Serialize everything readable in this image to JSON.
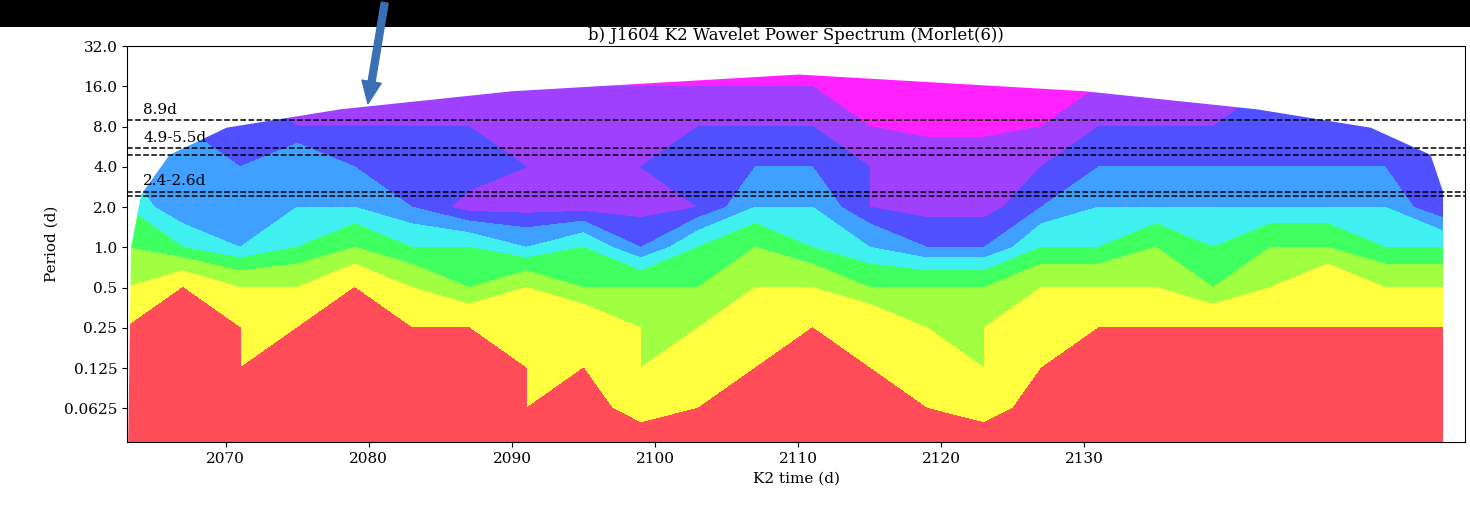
{
  "chart_data": {
    "type": "wavelet_power",
    "title": "b) J1604 K2 Wavelet Power Spectrum (Morlet(6))",
    "x_label": "K2 time (d)",
    "y_label": "Period (d)",
    "log": "y",
    "xlim": [
      2063.1,
      2156.6
    ],
    "xticks": [
      2070,
      2080,
      2090,
      2100,
      2110,
      2120,
      2130
    ],
    "ylim": [
      0.035,
      32
    ],
    "yticks": [
      0.0625,
      0.125,
      0.25,
      0.5,
      {
        "value": 1,
        "label": "1.0"
      },
      {
        "value": 2,
        "label": "2.0"
      },
      {
        "value": 4,
        "label": "4.0"
      },
      {
        "value": 8,
        "label": "8.0"
      },
      {
        "value": 16,
        "label": "16.0"
      },
      {
        "value": 32,
        "label": "32.0"
      }
    ],
    "x": [
      2063,
      2067,
      2071,
      2075,
      2079,
      2083,
      2087,
      2091,
      2095,
      2099,
      2103,
      2107,
      2111,
      2115,
      2119,
      2123,
      2127,
      2131,
      2135,
      2139,
      2143,
      2147,
      2151,
      2155
    ],
    "periods": [
      0.035,
      0.0625,
      0.125,
      0.25,
      0.5,
      1,
      2,
      4,
      8,
      16,
      32
    ],
    "power": [
      [
        9,
        9,
        9,
        9,
        9,
        9,
        9,
        9,
        9,
        9,
        9,
        9,
        9,
        9,
        9,
        9,
        9,
        9,
        9,
        9,
        9,
        9,
        9,
        9
      ],
      [
        9,
        9,
        9,
        9,
        9,
        9,
        9,
        8,
        9,
        7,
        8,
        9,
        9,
        9,
        8,
        7,
        9,
        9,
        9,
        9,
        9,
        9,
        9,
        9
      ],
      [
        9,
        9,
        8,
        9,
        9,
        9,
        9,
        8,
        8,
        7,
        8,
        8,
        9,
        8,
        8,
        7,
        8,
        9,
        9,
        9,
        9,
        9,
        9,
        9
      ],
      [
        8,
        9,
        8,
        8,
        9,
        8,
        8,
        8,
        8,
        7,
        7,
        8,
        8,
        8,
        7,
        7,
        8,
        8,
        8,
        8,
        8,
        8,
        8,
        8
      ],
      [
        7,
        8,
        7,
        7,
        8,
        7,
        6,
        7,
        6,
        6,
        6,
        7,
        7,
        6,
        6,
        6,
        7,
        7,
        7,
        6,
        7,
        8,
        7,
        7
      ],
      [
        6,
        5,
        4,
        5,
        6,
        5,
        5,
        4,
        5,
        3,
        5,
        6,
        5,
        4,
        3,
        3,
        5,
        5,
        6,
        5,
        6,
        6,
        5,
        5
      ],
      [
        5,
        3,
        4,
        4,
        4,
        3,
        1.5,
        1.5,
        1.5,
        1.5,
        2,
        4,
        4,
        2,
        1.5,
        1.5,
        3,
        4,
        4,
        4,
        4,
        4,
        4,
        2
      ],
      [
        4,
        4,
        3,
        4,
        3,
        3,
        3,
        2,
        2,
        2,
        3,
        3,
        3,
        2,
        2,
        2,
        2,
        3,
        3,
        3,
        3,
        3,
        3,
        3
      ],
      [
        3,
        3,
        3,
        2,
        2,
        2,
        2,
        2,
        2,
        2,
        2,
        2,
        2,
        1,
        0.5,
        0.5,
        1,
        2,
        2,
        2,
        3,
        3,
        3,
        3
      ],
      [
        2,
        2,
        2,
        1,
        1,
        1,
        1,
        1,
        1,
        1,
        1,
        1,
        1,
        1,
        0.5,
        0.5,
        1,
        1,
        1,
        1,
        2,
        2,
        2,
        2
      ],
      [
        1,
        1,
        1,
        1,
        0.5,
        0.5,
        0.5,
        0.5,
        0.5,
        0.5,
        0.5,
        0.5,
        0.5,
        0.5,
        0.5,
        0.5,
        0.5,
        0.5,
        0.5,
        1,
        1,
        1,
        1,
        1
      ]
    ],
    "power_levels": [
      0,
      1,
      2,
      3,
      4,
      5,
      6,
      7,
      8,
      10
    ],
    "colors": [
      "#ff22ff",
      "#a040ff",
      "#5050ff",
      "#40a0ff",
      "#40f0f0",
      "#40ff60",
      "#a0ff40",
      "#ffff40",
      "#ff4d5a"
    ],
    "cone": {
      "x": [
        2063.1,
        2063.3,
        2064,
        2066,
        2070,
        2078,
        2090,
        2110,
        2130,
        2142,
        2150,
        2154.2,
        2156.4,
        2156.6
      ],
      "period": [
        0.035,
        1,
        2.5,
        5,
        8,
        11,
        15,
        20,
        15,
        11,
        8,
        5,
        1,
        0.035
      ]
    },
    "reference_lines": [
      {
        "label": "8.9d",
        "periods": [
          8.9
        ]
      },
      {
        "label": "4.9-5.5d",
        "periods": [
          4.9,
          5.5
        ]
      },
      {
        "label": "2.4-2.6d",
        "periods": [
          2.4,
          2.6
        ]
      }
    ]
  }
}
